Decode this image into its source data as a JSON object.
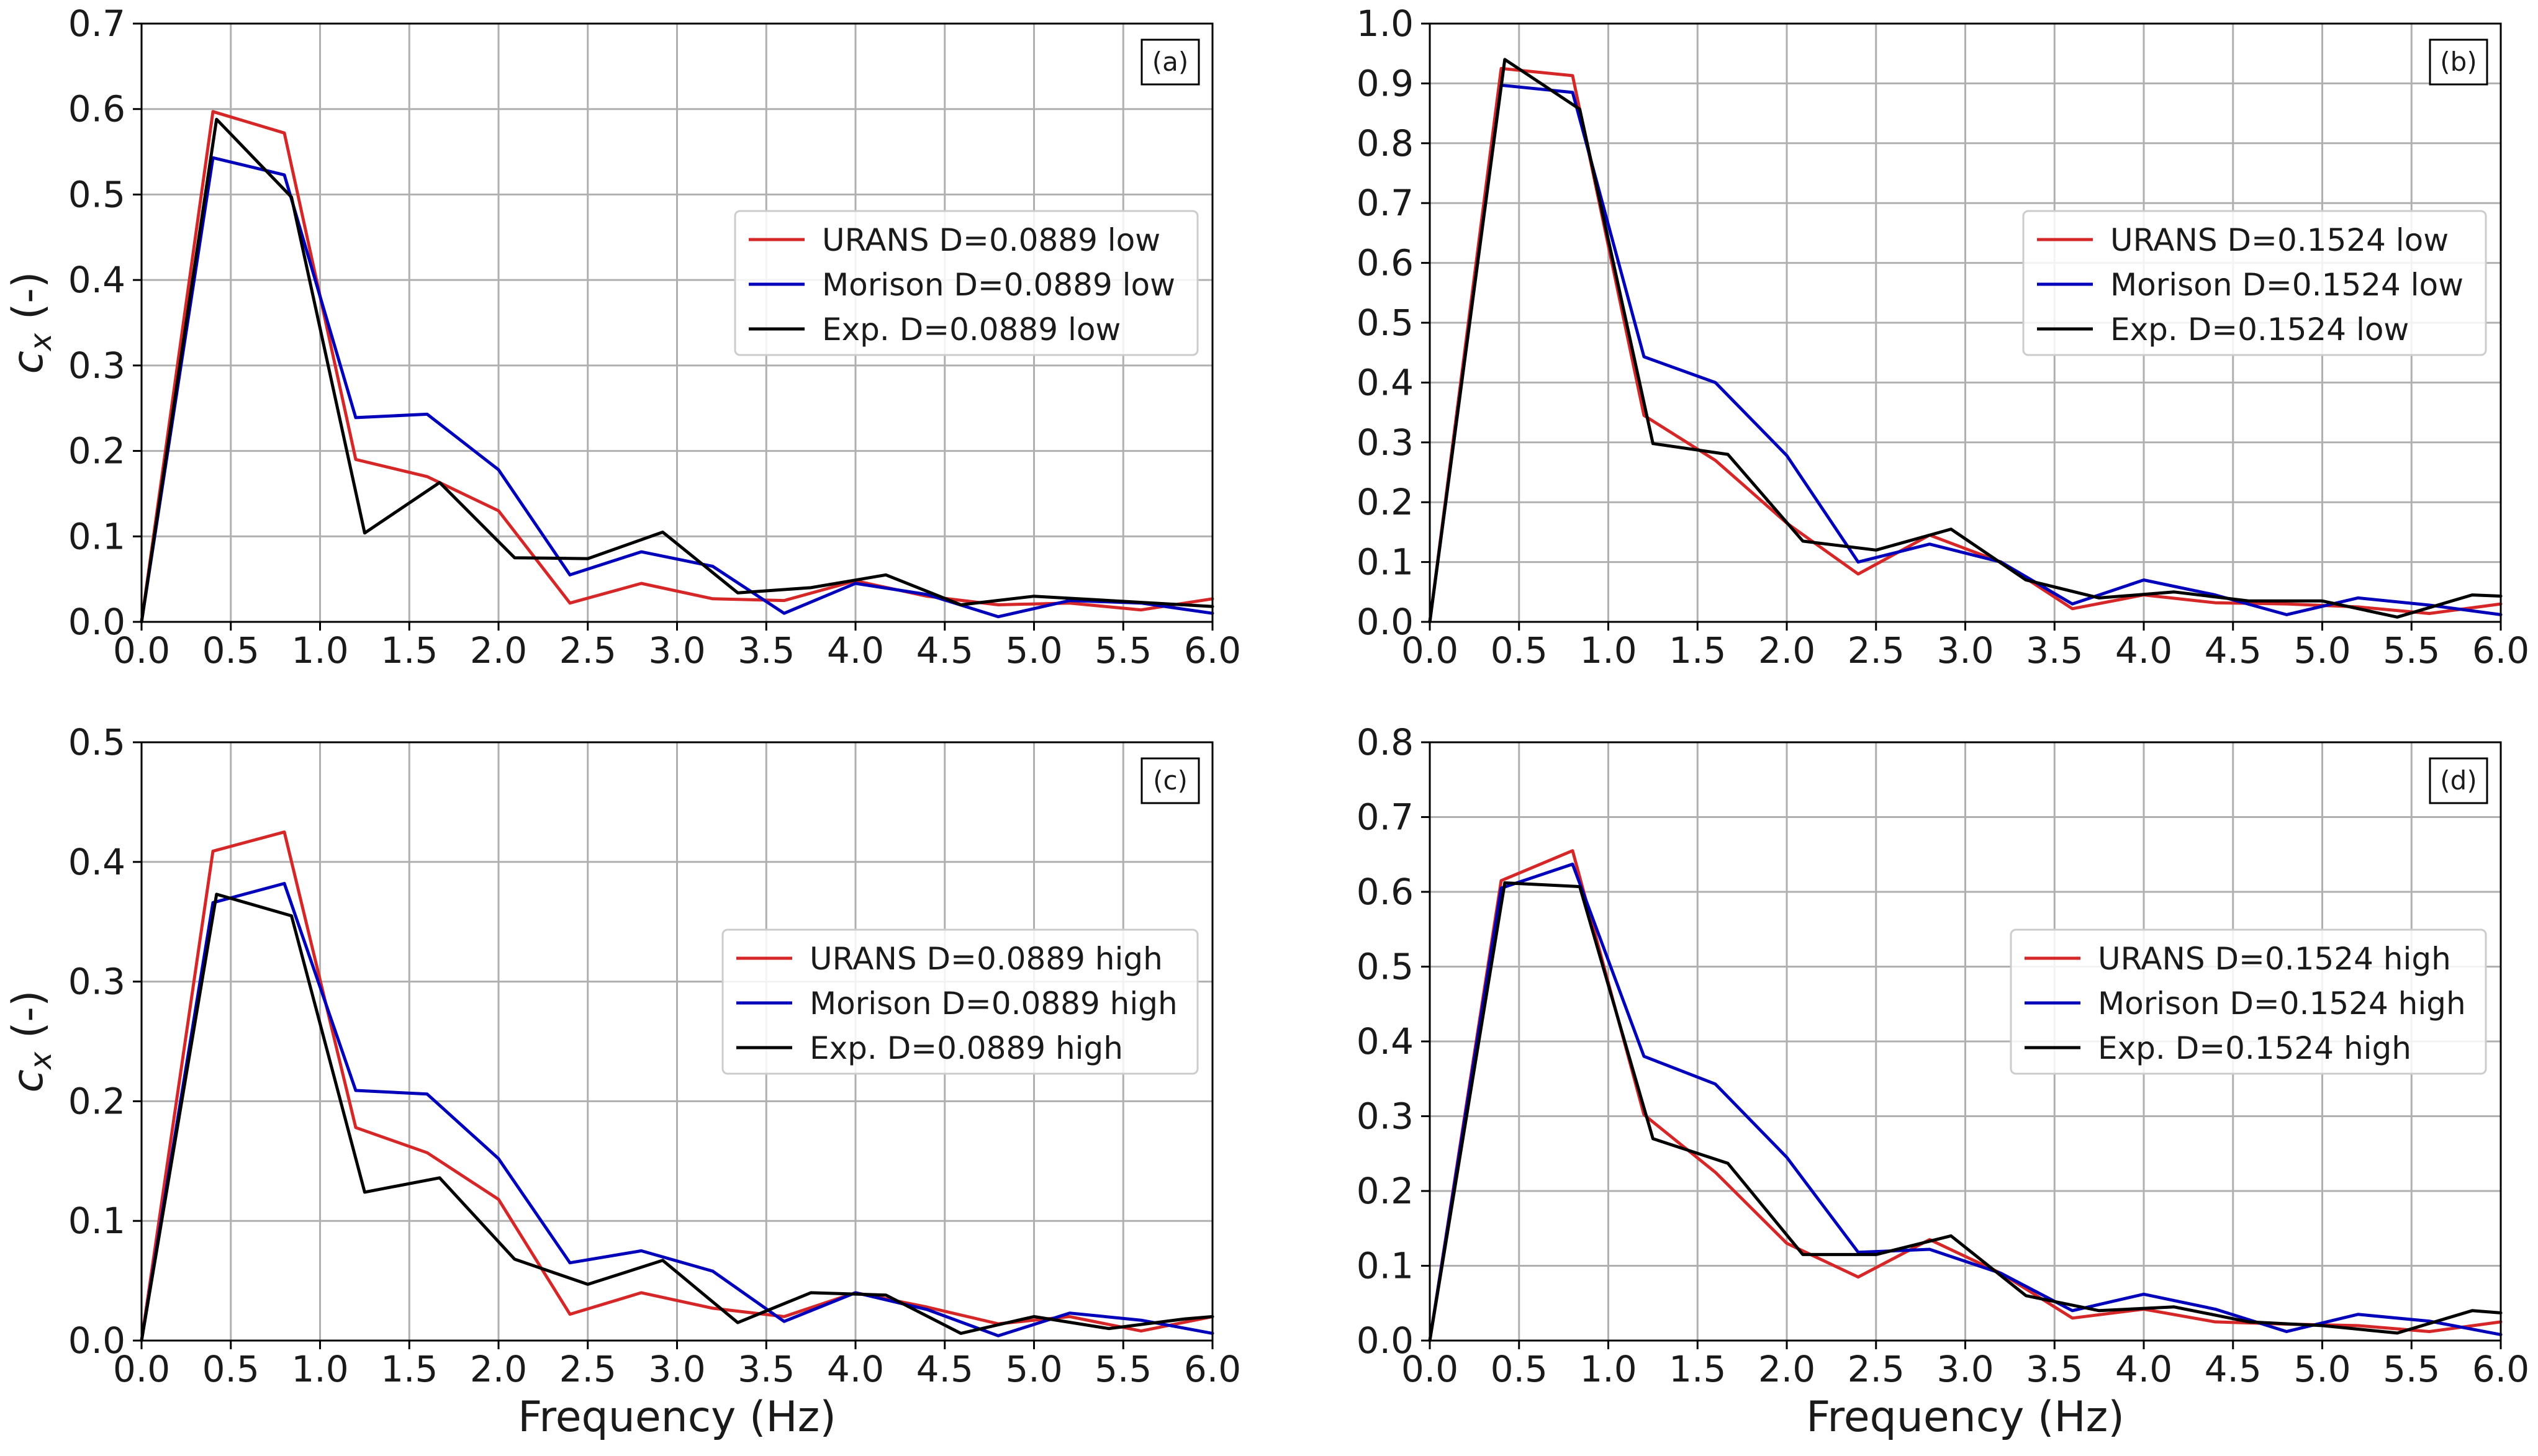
{
  "chart_data": [
    {
      "type": "line",
      "panel_label": "(a)",
      "xlabel": "",
      "ylabel_main": "c",
      "ylabel_sub": "x",
      "ylabel_unit": " (-)",
      "xlim": [
        0,
        6
      ],
      "ylim": [
        0,
        0.7
      ],
      "xticks": [
        "0.0",
        "0.5",
        "1.0",
        "1.5",
        "2.0",
        "2.5",
        "3.0",
        "3.5",
        "4.0",
        "4.5",
        "5.0",
        "5.5",
        "6.0"
      ],
      "yticks": [
        "0.0",
        "0.1",
        "0.2",
        "0.3",
        "0.4",
        "0.5",
        "0.6",
        "0.7"
      ],
      "grid": true,
      "legend_position": "center-right",
      "series": [
        {
          "name": "URANS D=0.0889 low",
          "color": "#d62728",
          "x": [
            0,
            0.4,
            0.8,
            1.2,
            1.6,
            2.0,
            2.4,
            2.8,
            3.2,
            3.6,
            4.0,
            4.4,
            4.8,
            5.2,
            5.6,
            6.0
          ],
          "y": [
            0,
            0.597,
            0.572,
            0.19,
            0.17,
            0.13,
            0.022,
            0.045,
            0.027,
            0.025,
            0.048,
            0.03,
            0.02,
            0.022,
            0.014,
            0.027
          ]
        },
        {
          "name": "Morison D=0.0889 low",
          "color": "#0000bb",
          "x": [
            0,
            0.4,
            0.8,
            1.2,
            1.6,
            2.0,
            2.4,
            2.8,
            3.2,
            3.6,
            4.0,
            4.4,
            4.8,
            5.2,
            5.6,
            6.0
          ],
          "y": [
            0,
            0.543,
            0.523,
            0.239,
            0.243,
            0.178,
            0.055,
            0.082,
            0.065,
            0.01,
            0.045,
            0.032,
            0.006,
            0.025,
            0.022,
            0.01
          ]
        },
        {
          "name": "Exp. D=0.0889 low",
          "color": "#000000",
          "x": [
            0,
            0.42,
            0.84,
            1.25,
            1.67,
            2.09,
            2.5,
            2.92,
            3.34,
            3.75,
            4.17,
            4.59,
            5.0,
            5.42,
            5.84,
            6.0
          ],
          "y": [
            0,
            0.588,
            0.497,
            0.104,
            0.163,
            0.075,
            0.074,
            0.105,
            0.034,
            0.04,
            0.055,
            0.02,
            0.03,
            0.025,
            0.02,
            0.018
          ]
        }
      ]
    },
    {
      "type": "line",
      "panel_label": "(b)",
      "xlabel": "",
      "ylabel_main": "",
      "ylabel_sub": "",
      "ylabel_unit": "",
      "xlim": [
        0,
        6
      ],
      "ylim": [
        0,
        1.0
      ],
      "xticks": [
        "0.0",
        "0.5",
        "1.0",
        "1.5",
        "2.0",
        "2.5",
        "3.0",
        "3.5",
        "4.0",
        "4.5",
        "5.0",
        "5.5",
        "6.0"
      ],
      "yticks": [
        "0.0",
        "0.1",
        "0.2",
        "0.3",
        "0.4",
        "0.5",
        "0.6",
        "0.7",
        "0.8",
        "0.9",
        "1.0"
      ],
      "grid": true,
      "legend_position": "center-right",
      "series": [
        {
          "name": "URANS D=0.1524 low",
          "color": "#d62728",
          "x": [
            0,
            0.4,
            0.8,
            1.2,
            1.6,
            2.0,
            2.4,
            2.8,
            3.2,
            3.6,
            4.0,
            4.4,
            4.8,
            5.2,
            5.6,
            6.0
          ],
          "y": [
            0,
            0.925,
            0.913,
            0.345,
            0.27,
            0.165,
            0.08,
            0.145,
            0.1,
            0.022,
            0.045,
            0.032,
            0.03,
            0.025,
            0.014,
            0.03
          ]
        },
        {
          "name": "Morison D=0.1524 low",
          "color": "#0000bb",
          "x": [
            0,
            0.4,
            0.8,
            1.2,
            1.6,
            2.0,
            2.4,
            2.8,
            3.2,
            3.6,
            4.0,
            4.4,
            4.8,
            5.2,
            5.6,
            6.0
          ],
          "y": [
            0,
            0.897,
            0.885,
            0.443,
            0.4,
            0.278,
            0.1,
            0.13,
            0.1,
            0.03,
            0.07,
            0.045,
            0.012,
            0.04,
            0.028,
            0.012
          ]
        },
        {
          "name": "Exp. D=0.1524 low",
          "color": "#000000",
          "x": [
            0,
            0.42,
            0.84,
            1.25,
            1.67,
            2.09,
            2.5,
            2.92,
            3.34,
            3.75,
            4.17,
            4.59,
            5.0,
            5.42,
            5.84,
            6.0
          ],
          "y": [
            0,
            0.94,
            0.857,
            0.298,
            0.28,
            0.135,
            0.12,
            0.155,
            0.07,
            0.04,
            0.05,
            0.035,
            0.035,
            0.008,
            0.045,
            0.043
          ]
        }
      ]
    },
    {
      "type": "line",
      "panel_label": "(c)",
      "xlabel": "Frequency (Hz)",
      "ylabel_main": "c",
      "ylabel_sub": "x",
      "ylabel_unit": " (-)",
      "xlim": [
        0,
        6
      ],
      "ylim": [
        0,
        0.5
      ],
      "xticks": [
        "0.0",
        "0.5",
        "1.0",
        "1.5",
        "2.0",
        "2.5",
        "3.0",
        "3.5",
        "4.0",
        "4.5",
        "5.0",
        "5.5",
        "6.0"
      ],
      "yticks": [
        "0.0",
        "0.1",
        "0.2",
        "0.3",
        "0.4",
        "0.5"
      ],
      "grid": true,
      "legend_position": "center-right",
      "series": [
        {
          "name": "URANS D=0.0889 high",
          "color": "#d62728",
          "x": [
            0,
            0.4,
            0.8,
            1.2,
            1.6,
            2.0,
            2.4,
            2.8,
            3.2,
            3.6,
            4.0,
            4.4,
            4.8,
            5.2,
            5.6,
            6.0
          ],
          "y": [
            0,
            0.409,
            0.425,
            0.178,
            0.157,
            0.118,
            0.022,
            0.04,
            0.027,
            0.02,
            0.04,
            0.028,
            0.014,
            0.02,
            0.008,
            0.02
          ]
        },
        {
          "name": "Morison D=0.0889 high",
          "color": "#0000bb",
          "x": [
            0,
            0.4,
            0.8,
            1.2,
            1.6,
            2.0,
            2.4,
            2.8,
            3.2,
            3.6,
            4.0,
            4.4,
            4.8,
            5.2,
            5.6,
            6.0
          ],
          "y": [
            0,
            0.366,
            0.382,
            0.209,
            0.206,
            0.152,
            0.065,
            0.075,
            0.058,
            0.016,
            0.04,
            0.026,
            0.004,
            0.023,
            0.017,
            0.006
          ]
        },
        {
          "name": "Exp. D=0.0889 high",
          "color": "#000000",
          "x": [
            0,
            0.42,
            0.84,
            1.25,
            1.67,
            2.09,
            2.5,
            2.92,
            3.34,
            3.75,
            4.17,
            4.59,
            5.0,
            5.42,
            5.84,
            6.0
          ],
          "y": [
            0,
            0.373,
            0.355,
            0.124,
            0.136,
            0.068,
            0.047,
            0.067,
            0.015,
            0.04,
            0.038,
            0.006,
            0.02,
            0.01,
            0.018,
            0.02
          ]
        }
      ]
    },
    {
      "type": "line",
      "panel_label": "(d)",
      "xlabel": "Frequency (Hz)",
      "ylabel_main": "",
      "ylabel_sub": "",
      "ylabel_unit": "",
      "xlim": [
        0,
        6
      ],
      "ylim": [
        0,
        0.8
      ],
      "xticks": [
        "0.0",
        "0.5",
        "1.0",
        "1.5",
        "2.0",
        "2.5",
        "3.0",
        "3.5",
        "4.0",
        "4.5",
        "5.0",
        "5.5",
        "6.0"
      ],
      "yticks": [
        "0.0",
        "0.1",
        "0.2",
        "0.3",
        "0.4",
        "0.5",
        "0.6",
        "0.7",
        "0.8"
      ],
      "grid": true,
      "legend_position": "center-right",
      "series": [
        {
          "name": "URANS D=0.1524 high",
          "color": "#d62728",
          "x": [
            0,
            0.4,
            0.8,
            1.2,
            1.6,
            2.0,
            2.4,
            2.8,
            3.2,
            3.6,
            4.0,
            4.4,
            4.8,
            5.2,
            5.6,
            6.0
          ],
          "y": [
            0,
            0.615,
            0.655,
            0.302,
            0.225,
            0.13,
            0.085,
            0.135,
            0.09,
            0.03,
            0.042,
            0.025,
            0.022,
            0.02,
            0.012,
            0.025
          ]
        },
        {
          "name": "Morison D=0.1524 high",
          "color": "#0000bb",
          "x": [
            0,
            0.4,
            0.8,
            1.2,
            1.6,
            2.0,
            2.4,
            2.8,
            3.2,
            3.6,
            4.0,
            4.4,
            4.8,
            5.2,
            5.6,
            6.0
          ],
          "y": [
            0,
            0.605,
            0.637,
            0.38,
            0.343,
            0.245,
            0.118,
            0.122,
            0.09,
            0.04,
            0.062,
            0.042,
            0.012,
            0.035,
            0.026,
            0.008
          ]
        },
        {
          "name": "Exp. D=0.1524 high",
          "color": "#000000",
          "x": [
            0,
            0.42,
            0.84,
            1.25,
            1.67,
            2.09,
            2.5,
            2.92,
            3.34,
            3.75,
            4.17,
            4.59,
            5.0,
            5.42,
            5.84,
            6.0
          ],
          "y": [
            0,
            0.612,
            0.607,
            0.27,
            0.237,
            0.115,
            0.115,
            0.14,
            0.06,
            0.04,
            0.045,
            0.025,
            0.02,
            0.01,
            0.04,
            0.037
          ]
        }
      ]
    }
  ]
}
